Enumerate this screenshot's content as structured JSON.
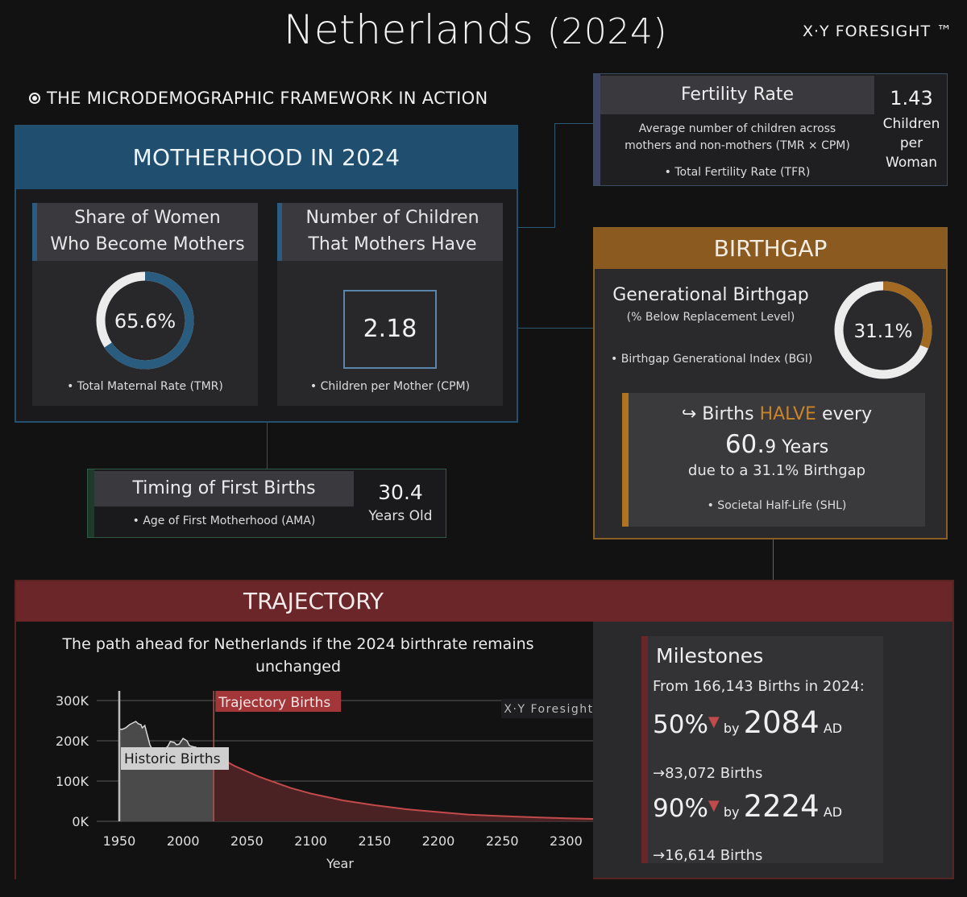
{
  "header": {
    "title_country": "Netherlands",
    "title_year": "(2024)",
    "brand": "X·Y FORESIGHT ™",
    "framework_label": "THE MICRODEMOGRAPHIC FRAMEWORK IN ACTION"
  },
  "motherhood": {
    "heading": "MOTHERHOOD IN 2024",
    "share": {
      "title_line1": "Share of Women",
      "title_line2": "Who Become Mothers",
      "value_text": "65.6%",
      "fraction": 0.656,
      "bullet": "• Total Maternal Rate (TMR)"
    },
    "children": {
      "title_line1": "Number of Children",
      "title_line2": "That Mothers Have",
      "value_text": "2.18",
      "bullet": "• Children per Mother (CPM)"
    }
  },
  "timing": {
    "title": "Timing of First Births",
    "bullet": "• Age of First Motherhood (AMA)",
    "value": "30.4",
    "unit": "Years Old"
  },
  "fertility": {
    "title": "Fertility Rate",
    "desc_line1": "Average number of children across",
    "desc_line2": "mothers and non-mothers (TMR × CPM)",
    "bullet": "• Total Fertility Rate (TFR)",
    "value": "1.43",
    "unit_line1": "Children",
    "unit_line2": "per",
    "unit_line3": "Woman"
  },
  "birthgap": {
    "heading": "BIRTHGAP",
    "title": "Generational Birthgap",
    "subtitle": "(% Below Replacement Level)",
    "bullet": "• Birthgap Generational Index (BGI)",
    "value_text": "31.1%",
    "fraction": 0.311,
    "shl": {
      "arrow": "↪",
      "births": "Births",
      "halve": "HALVE",
      "every": "every",
      "years_big": "60.",
      "years_small": "9 Years",
      "due": "due to a 31.1% Birthgap",
      "bullet": "• Societal Half-Life (SHL)"
    }
  },
  "trajectory": {
    "heading": "TRAJECTORY",
    "chart_title_line1": "The path ahead for Netherlands if the 2024 birthrate remains",
    "chart_title_line2": "unchanged",
    "watermark": "X·Y Foresight",
    "milestones": {
      "title": "Milestones",
      "from": "From 166,143 Births in 2024:",
      "m1_pct": "50%",
      "m1_by": "by",
      "m1_year": "2084",
      "m1_ad": "AD",
      "m1_births": "→83,072 Births",
      "m2_pct": "90%",
      "m2_by": "by",
      "m2_year": "2224",
      "m2_ad": "AD",
      "m2_births": "→16,614 Births"
    }
  },
  "colors": {
    "blue": "#2a5c80",
    "orange": "#b0731f",
    "red": "#6a2628",
    "historic": "#c8c8c8",
    "trajectory_line": "#c24a4a"
  },
  "chart_data": {
    "type": "area",
    "xlabel": "Year",
    "ylabel": "",
    "xlim": [
      1950,
      2325
    ],
    "ylim": [
      0,
      300000
    ],
    "x_ticks": [
      "1950",
      "2000",
      "2050",
      "2100",
      "2150",
      "2200",
      "2250",
      "2300"
    ],
    "y_ticks": [
      "300K",
      "200K",
      "100K",
      "0K"
    ],
    "y_tick_values": [
      300000,
      200000,
      100000,
      0
    ],
    "annotation_historic": "Historic Births",
    "annotation_trajectory": "Trajectory Births",
    "series": [
      {
        "name": "Historic Births",
        "x": [
          1950,
          1952,
          1955,
          1958,
          1961,
          1963,
          1965,
          1967,
          1968,
          1970,
          1972,
          1974,
          1976,
          1978,
          1980,
          1983,
          1985,
          1988,
          1990,
          1993,
          1995,
          1997,
          2000,
          2003,
          2005,
          2008,
          2010,
          2013,
          2015,
          2018,
          2020,
          2022,
          2024
        ],
        "values": [
          230000,
          228000,
          232000,
          240000,
          245000,
          248000,
          242000,
          240000,
          232000,
          238000,
          214000,
          190000,
          178000,
          175000,
          181000,
          170000,
          178000,
          186000,
          198000,
          196000,
          190000,
          192000,
          206000,
          200000,
          188000,
          185000,
          184000,
          171000,
          170000,
          168000,
          168000,
          167000,
          166143
        ]
      },
      {
        "name": "Trajectory Births",
        "x": [
          2024,
          2040,
          2060,
          2084,
          2100,
          2125,
          2150,
          2175,
          2200,
          2224,
          2250,
          2275,
          2300,
          2325
        ],
        "values": [
          166143,
          138000,
          110000,
          83072,
          69000,
          52000,
          40000,
          30000,
          23000,
          16614,
          13000,
          10000,
          7500,
          5800
        ]
      }
    ]
  }
}
